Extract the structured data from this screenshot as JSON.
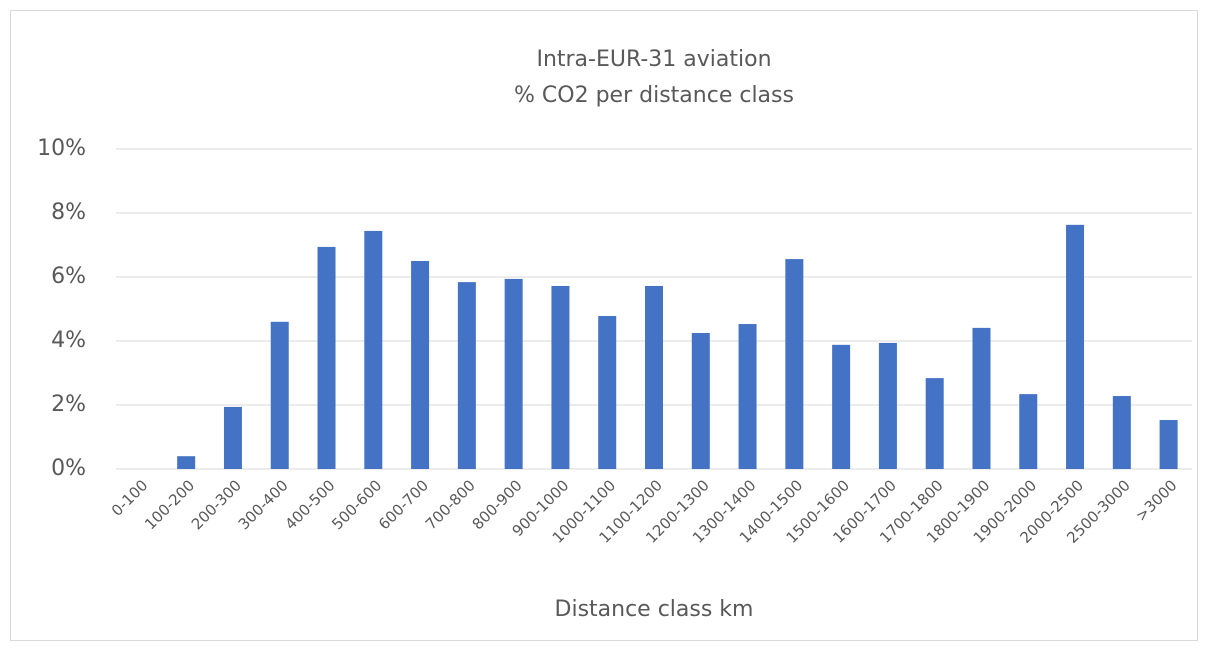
{
  "chart_data": {
    "type": "bar",
    "title": "Intra-EUR-31 aviation",
    "subtitle": "% CO2 per distance class",
    "x_label": "Distance class km",
    "categories": [
      "0-100",
      "100-200",
      "200-300",
      "300-400",
      "400-500",
      "500-600",
      "600-700",
      "700-800",
      "800-900",
      "900-1000",
      "1000-1100",
      "1100-1200",
      "1200-1300",
      "1300-1400",
      "1400-1500",
      "1500-1600",
      "1600-1700",
      "1700-1800",
      "1800-1900",
      "1900-2000",
      "2000-2500",
      "2500-3000",
      ">3000"
    ],
    "values": [
      0,
      0.4,
      1.94,
      4.6,
      6.94,
      7.44,
      6.5,
      5.84,
      5.94,
      5.72,
      4.78,
      5.72,
      4.25,
      4.53,
      6.56,
      3.88,
      3.94,
      2.84,
      4.41,
      2.34,
      7.63,
      2.28,
      1.53
    ],
    "color": "#4472c4",
    "ylim": [
      0,
      10
    ],
    "yticks": [
      {
        "value": 0,
        "label": "0%"
      },
      {
        "value": 2,
        "label": "2%"
      },
      {
        "value": 4,
        "label": "4%"
      },
      {
        "value": 6,
        "label": "6%"
      },
      {
        "value": 8,
        "label": "8%"
      },
      {
        "value": 10,
        "label": "10%"
      }
    ],
    "grid": true
  }
}
